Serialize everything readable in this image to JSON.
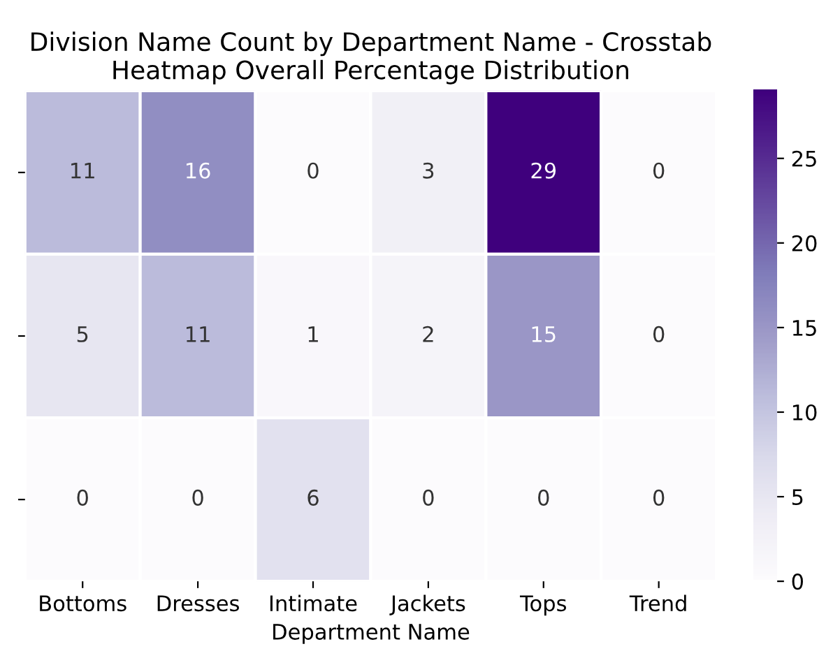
{
  "chart_data": {
    "type": "heatmap",
    "title": "Division Name Count by Department Name - Crosstab\nHeatmap Overall Percentage Distribution",
    "xlabel": "Department Name",
    "categories": [
      "Bottoms",
      "Dresses",
      "Intimate",
      "Jackets",
      "Tops",
      "Trend"
    ],
    "y_categories": [
      null,
      null,
      null
    ],
    "cells": [
      [
        11,
        16,
        0,
        3,
        29,
        0
      ],
      [
        5,
        11,
        1,
        2,
        15,
        0
      ],
      [
        0,
        0,
        6,
        0,
        0,
        0
      ]
    ],
    "data_labels": true,
    "clim": [
      0,
      29
    ],
    "cticks": [
      0,
      5,
      10,
      15,
      20,
      25
    ]
  }
}
